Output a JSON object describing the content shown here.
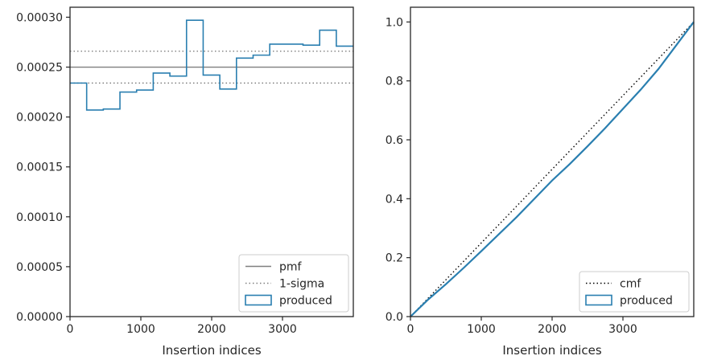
{
  "colors": {
    "produced": "#2a7fb0",
    "pmf": "#7f7f7f",
    "sigma": "#7f7f7f",
    "cmf": "#000000",
    "axes": "#262626"
  },
  "chart_data": [
    {
      "type": "histogram-step",
      "xlabel": "Insertion indices",
      "ylabel": "",
      "xlim": [
        0,
        4000
      ],
      "ylim": [
        0,
        0.00031
      ],
      "xticks": [
        0,
        1000,
        2000,
        3000
      ],
      "xtick_labels": [
        "0",
        "1000",
        "2000",
        "3000"
      ],
      "yticks": [
        0,
        5e-05,
        0.0001,
        0.00015,
        0.0002,
        0.00025,
        0.0003
      ],
      "ytick_labels": [
        "0.00000",
        "0.00005",
        "0.00010",
        "0.00015",
        "0.00020",
        "0.00025",
        "0.00030"
      ],
      "bin_edges": [
        0,
        235,
        470,
        705,
        940,
        1175,
        1410,
        1645,
        1880,
        2115,
        2350,
        2585,
        2820,
        3055,
        3290,
        3525,
        3760,
        4000
      ],
      "series": [
        {
          "name": "produced",
          "values": [
            0.000234,
            0.000207,
            0.000208,
            0.000225,
            0.000227,
            0.000244,
            0.000241,
            0.000297,
            0.000242,
            0.000228,
            0.000259,
            0.000262,
            0.000273,
            0.000273,
            0.000272,
            0.000287,
            0.000271
          ]
        }
      ],
      "hlines": [
        {
          "name": "pmf",
          "y": 0.00025,
          "style": "solid"
        },
        {
          "name": "1-sigma",
          "y": 0.000266,
          "style": "dotted"
        },
        {
          "name": "1-sigma",
          "y": 0.000234,
          "style": "dotted"
        }
      ],
      "legend": {
        "placement": "lower-right",
        "entries": [
          {
            "label": "pmf",
            "kind": "line-solid"
          },
          {
            "label": "1-sigma",
            "kind": "line-dotted"
          },
          {
            "label": "produced",
            "kind": "patch"
          }
        ]
      }
    },
    {
      "type": "cumulative-step",
      "xlabel": "Insertion indices",
      "ylabel": "",
      "xlim": [
        0,
        4000
      ],
      "ylim": [
        0,
        1.05
      ],
      "xticks": [
        0,
        1000,
        2000,
        3000
      ],
      "xtick_labels": [
        "0",
        "1000",
        "2000",
        "3000"
      ],
      "yticks": [
        0,
        0.2,
        0.4,
        0.6,
        0.8,
        1.0
      ],
      "ytick_labels": [
        "0.0",
        "0.2",
        "0.4",
        "0.6",
        "0.8",
        "1.0"
      ],
      "series": [
        {
          "name": "cmf",
          "style": "dotted",
          "x": [
            0,
            4000
          ],
          "y": [
            0,
            1.0
          ]
        },
        {
          "name": "produced",
          "style": "solid",
          "x": [
            0,
            250,
            500,
            750,
            1000,
            1250,
            1500,
            1750,
            2000,
            2250,
            2500,
            2750,
            3000,
            3250,
            3500,
            3750,
            4000
          ],
          "y": [
            0,
            0.058,
            0.11,
            0.165,
            0.222,
            0.28,
            0.338,
            0.4,
            0.462,
            0.518,
            0.578,
            0.64,
            0.705,
            0.77,
            0.84,
            0.92,
            1.0
          ]
        }
      ],
      "legend": {
        "placement": "lower-right",
        "entries": [
          {
            "label": "cmf",
            "kind": "line-dotted"
          },
          {
            "label": "produced",
            "kind": "patch"
          }
        ]
      }
    }
  ]
}
